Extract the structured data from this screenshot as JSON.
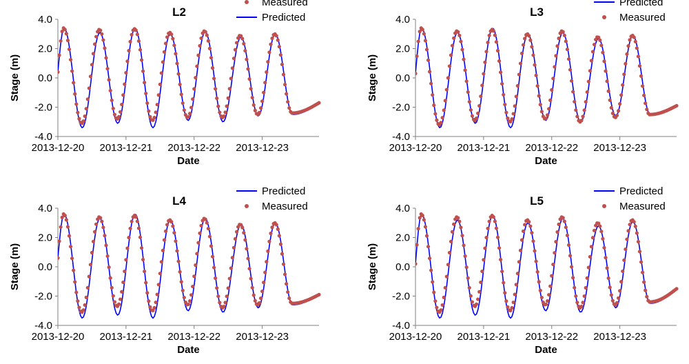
{
  "chart_data": [
    {
      "type": "line",
      "title": "L2",
      "xlabel": "Date",
      "ylabel": "Stage (m)",
      "xlim": [
        "2013-12-20",
        "2013-12-23 20:00"
      ],
      "ylim": [
        -4.0,
        4.0
      ],
      "yticks": [
        "4.0",
        "2.0",
        "0.0",
        "-2.0",
        "-4.0"
      ],
      "xticks": [
        "2013-12-20",
        "2013-12-21",
        "2013-12-22",
        "2013-12-23"
      ],
      "grid": false,
      "legend": "top-right",
      "legend_order": [
        "Measured",
        "Predicted"
      ],
      "series": [
        {
          "name": "Measured",
          "style": "dots",
          "color": "#C0504D",
          "t0": "2013-12-20 00:00",
          "interval_minutes": 30,
          "tidal_peaks_hours": [
            2.0,
            14.6,
            27.0,
            39.4,
            51.6,
            64.2,
            76.4
          ],
          "tidal_peak_values": [
            3.4,
            3.3,
            3.35,
            3.1,
            3.2,
            2.9,
            3.0
          ],
          "tidal_trough_hours": [
            8.4,
            20.9,
            33.3,
            45.7,
            58.0,
            70.4,
            82.5
          ],
          "tidal_trough_values": [
            -3.1,
            -2.8,
            -2.9,
            -2.7,
            -2.7,
            -2.5,
            -2.4
          ],
          "start_value": 0.4,
          "end_value": -1.7,
          "end_hours": 92
        },
        {
          "name": "Predicted",
          "style": "line",
          "color": "#0000FF",
          "t0": "2013-12-20 00:00",
          "interval_minutes": 30,
          "tidal_peaks_hours": [
            2.2,
            14.8,
            27.2,
            39.6,
            51.9,
            64.5,
            76.6
          ],
          "tidal_peak_values": [
            3.4,
            3.1,
            3.4,
            3.0,
            3.15,
            2.8,
            3.0
          ],
          "tidal_trough_hours": [
            8.6,
            21.1,
            33.5,
            45.9,
            58.2,
            70.6,
            82.7
          ],
          "tidal_trough_values": [
            -3.4,
            -3.1,
            -3.4,
            -2.9,
            -3.0,
            -2.6,
            -2.5
          ],
          "start_value": 0.4,
          "end_value": -1.7,
          "end_hours": 92
        }
      ]
    },
    {
      "type": "line",
      "title": "L3",
      "xlabel": "Date",
      "ylabel": "Stage (m)",
      "xlim": [
        "2013-12-20",
        "2013-12-23 20:00"
      ],
      "ylim": [
        -4.0,
        4.0
      ],
      "yticks": [
        "4.0",
        "2.0",
        "0.0",
        "-2.0",
        "-4.0"
      ],
      "xticks": [
        "2013-12-20",
        "2013-12-21",
        "2013-12-22",
        "2013-12-23"
      ],
      "grid": false,
      "legend": "top-right",
      "legend_order": [
        "Predicted",
        "Measured"
      ],
      "series": [
        {
          "name": "Measured",
          "style": "dots",
          "color": "#C0504D",
          "t0": "2013-12-20 00:00",
          "interval_minutes": 30,
          "tidal_peaks_hours": [
            2.0,
            14.6,
            27.0,
            39.4,
            51.6,
            64.2,
            76.4
          ],
          "tidal_peak_values": [
            3.4,
            3.2,
            3.3,
            3.0,
            3.2,
            2.8,
            2.9
          ],
          "tidal_trough_hours": [
            8.4,
            20.9,
            33.3,
            45.7,
            58.0,
            70.4,
            82.5
          ],
          "tidal_trough_values": [
            -3.2,
            -2.9,
            -3.0,
            -2.8,
            -3.0,
            -2.7,
            -2.5
          ],
          "start_value": 0.3,
          "end_value": -1.9,
          "end_hours": 92
        },
        {
          "name": "Predicted",
          "style": "line",
          "color": "#0000FF",
          "t0": "2013-12-20 00:00",
          "interval_minutes": 30,
          "tidal_peaks_hours": [
            2.2,
            14.8,
            27.2,
            39.6,
            51.9,
            64.5,
            76.6
          ],
          "tidal_peak_values": [
            3.4,
            3.1,
            3.4,
            3.0,
            3.1,
            2.7,
            2.9
          ],
          "tidal_trough_hours": [
            8.6,
            21.1,
            33.5,
            45.9,
            58.2,
            70.6,
            82.7
          ],
          "tidal_trough_values": [
            -3.4,
            -3.1,
            -3.4,
            -2.9,
            -3.0,
            -2.6,
            -2.5
          ],
          "start_value": 0.3,
          "end_value": -1.9,
          "end_hours": 92
        }
      ]
    },
    {
      "type": "line",
      "title": "L4",
      "xlabel": "Date",
      "ylabel": "Stage (m)",
      "xlim": [
        "2013-12-20",
        "2013-12-23 20:00"
      ],
      "ylim": [
        -4.0,
        4.0
      ],
      "yticks": [
        "4.0",
        "2.0",
        "0.0",
        "-2.0",
        "-4.0"
      ],
      "xticks": [
        "2013-12-20",
        "2013-12-21",
        "2013-12-22",
        "2013-12-23"
      ],
      "grid": false,
      "legend": "top-right",
      "legend_order": [
        "Predicted",
        "Measured"
      ],
      "series": [
        {
          "name": "Measured",
          "style": "dots",
          "color": "#C0504D",
          "t0": "2013-12-20 00:00",
          "interval_minutes": 30,
          "tidal_peaks_hours": [
            2.0,
            14.6,
            27.0,
            39.4,
            51.6,
            64.2,
            76.4
          ],
          "tidal_peak_values": [
            3.6,
            3.4,
            3.5,
            3.2,
            3.3,
            2.9,
            3.0
          ],
          "tidal_trough_hours": [
            8.4,
            20.9,
            33.3,
            45.7,
            58.0,
            70.4,
            82.5
          ],
          "tidal_trough_values": [
            -3.1,
            -2.7,
            -3.0,
            -2.6,
            -2.8,
            -2.6,
            -2.5
          ],
          "start_value": 0.6,
          "end_value": -1.9,
          "end_hours": 92
        },
        {
          "name": "Predicted",
          "style": "line",
          "color": "#0000FF",
          "t0": "2013-12-20 00:00",
          "interval_minutes": 30,
          "tidal_peaks_hours": [
            2.2,
            14.8,
            27.2,
            39.6,
            51.9,
            64.5,
            76.6
          ],
          "tidal_peak_values": [
            3.6,
            3.3,
            3.6,
            3.2,
            3.3,
            2.9,
            3.0
          ],
          "tidal_trough_hours": [
            8.6,
            21.1,
            33.5,
            45.9,
            58.2,
            70.6,
            82.7
          ],
          "tidal_trough_values": [
            -3.5,
            -3.3,
            -3.5,
            -3.0,
            -3.1,
            -2.8,
            -2.6
          ],
          "start_value": 0.6,
          "end_value": -1.9,
          "end_hours": 92
        }
      ]
    },
    {
      "type": "line",
      "title": "L5",
      "xlabel": "Date",
      "ylabel": "Stage (m)",
      "xlim": [
        "2013-12-20",
        "2013-12-23 20:00"
      ],
      "ylim": [
        -4.0,
        4.0
      ],
      "yticks": [
        "4.0",
        "2.0",
        "0.0",
        "-2.0",
        "-4.0"
      ],
      "xticks": [
        "2013-12-20",
        "2013-12-21",
        "2013-12-22",
        "2013-12-23"
      ],
      "grid": false,
      "legend": "top-right",
      "legend_order": [
        "Predicted",
        "Measured"
      ],
      "series": [
        {
          "name": "Measured",
          "style": "dots",
          "color": "#C0504D",
          "t0": "2013-12-20 00:00",
          "interval_minutes": 30,
          "tidal_peaks_hours": [
            2.0,
            14.6,
            27.0,
            39.4,
            51.6,
            64.2,
            76.4
          ],
          "tidal_peak_values": [
            3.6,
            3.4,
            3.5,
            3.2,
            3.4,
            3.0,
            3.2
          ],
          "tidal_trough_hours": [
            8.4,
            20.9,
            33.3,
            45.7,
            58.0,
            70.4,
            82.5
          ],
          "tidal_trough_values": [
            -3.1,
            -2.7,
            -3.0,
            -2.6,
            -2.8,
            -2.6,
            -2.4
          ],
          "start_value": 0.2,
          "end_value": -1.5,
          "end_hours": 92
        },
        {
          "name": "Predicted",
          "style": "line",
          "color": "#0000FF",
          "t0": "2013-12-20 00:00",
          "interval_minutes": 30,
          "tidal_peaks_hours": [
            2.2,
            14.8,
            27.2,
            39.6,
            51.9,
            64.5,
            76.6
          ],
          "tidal_peak_values": [
            3.6,
            3.2,
            3.5,
            3.0,
            3.3,
            2.8,
            3.1
          ],
          "tidal_trough_hours": [
            8.6,
            21.1,
            33.5,
            45.9,
            58.2,
            70.6,
            82.7
          ],
          "tidal_trough_values": [
            -3.5,
            -3.3,
            -3.5,
            -3.0,
            -3.1,
            -2.8,
            -2.5
          ],
          "start_value": 0.2,
          "end_value": -1.5,
          "end_hours": 92
        }
      ]
    }
  ]
}
